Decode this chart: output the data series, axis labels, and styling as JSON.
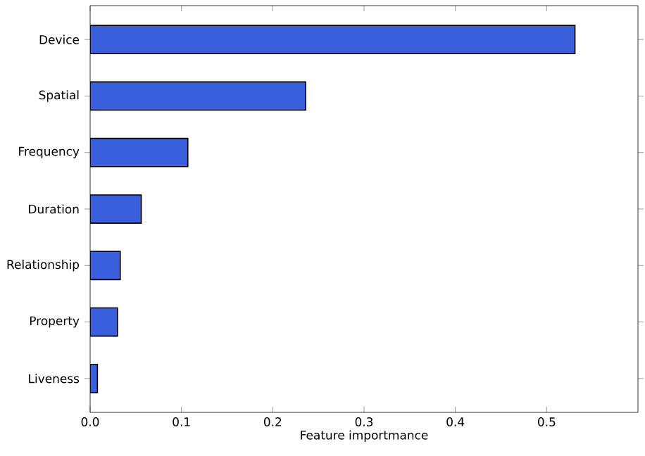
{
  "chart_data": {
    "type": "bar",
    "orientation": "horizontal",
    "xlabel": "Feature importmance",
    "categories": [
      "Device",
      "Spatial",
      "Frequency",
      "Duration",
      "Relationship",
      "Property",
      "Liveness"
    ],
    "values": [
      0.531,
      0.236,
      0.107,
      0.056,
      0.033,
      0.03,
      0.008
    ],
    "color": "#3a5fdc",
    "xlim": [
      0,
      0.6
    ],
    "xticks": [
      {
        "value": 0,
        "label": "0.0"
      },
      {
        "value": 0.1,
        "label": "0.1"
      },
      {
        "value": 0.2,
        "label": "0.2"
      },
      {
        "value": 0.3,
        "label": "0.3"
      },
      {
        "value": 0.4,
        "label": "0.4"
      },
      {
        "value": 0.5,
        "label": "0.5"
      }
    ],
    "grid": false
  }
}
